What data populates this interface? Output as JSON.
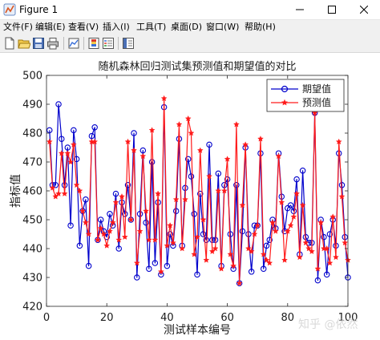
{
  "window": {
    "title": "Figure 1",
    "controls": [
      "minimize-icon",
      "maximize-icon",
      "close-icon"
    ]
  },
  "menubar": {
    "items": [
      {
        "id": "file",
        "label": "文件(F)"
      },
      {
        "id": "edit",
        "label": "编辑(E)"
      },
      {
        "id": "view",
        "label": "查看(V)"
      },
      {
        "id": "insert",
        "label": "插入(I)"
      },
      {
        "id": "tools",
        "label": "工具(T)"
      },
      {
        "id": "desktop",
        "label": "桌面(D)"
      },
      {
        "id": "window",
        "label": "窗口(W)"
      },
      {
        "id": "help",
        "label": "帮助(H)"
      }
    ]
  },
  "toolbar": {
    "buttons": [
      "new-figure-icon",
      "open-file-icon",
      "save-icon",
      "print-icon",
      "link-plot-icon",
      "insert-colorbar-icon",
      "insert-legend-icon",
      "property-editor-icon"
    ]
  },
  "watermark": "知乎 @依然",
  "chart_data": {
    "type": "line",
    "title": "随机森林回归测试集预测值和期望值的对比",
    "xlabel": "测试样本编号",
    "ylabel": "指标值",
    "xlim": [
      0,
      100
    ],
    "ylim": [
      420,
      500
    ],
    "xticks": [
      0,
      20,
      40,
      60,
      80,
      100
    ],
    "yticks": [
      420,
      430,
      440,
      450,
      460,
      470,
      480,
      490,
      500
    ],
    "grid": false,
    "legend_position": "top-right",
    "x": [
      1,
      2,
      3,
      4,
      5,
      6,
      7,
      8,
      9,
      10,
      11,
      12,
      13,
      14,
      15,
      16,
      17,
      18,
      19,
      20,
      21,
      22,
      23,
      24,
      25,
      26,
      27,
      28,
      29,
      30,
      31,
      32,
      33,
      34,
      35,
      36,
      37,
      38,
      39,
      40,
      41,
      42,
      43,
      44,
      45,
      46,
      47,
      48,
      49,
      50,
      51,
      52,
      53,
      54,
      55,
      56,
      57,
      58,
      59,
      60,
      61,
      62,
      63,
      64,
      65,
      66,
      67,
      68,
      69,
      70,
      71,
      72,
      73,
      74,
      75,
      76,
      77,
      78,
      79,
      80,
      81,
      82,
      83,
      84,
      85,
      86,
      87,
      88,
      89,
      90,
      91,
      92,
      93,
      94,
      95,
      96,
      97,
      98,
      99,
      100
    ],
    "series": [
      {
        "name": "期望值",
        "color": "#0000cc",
        "marker": "circle",
        "values": [
          481,
          462,
          462,
          490,
          478,
          462,
          475,
          448,
          481,
          471,
          441,
          453,
          457,
          434,
          479,
          482,
          443,
          450,
          446,
          444,
          452,
          448,
          459,
          440,
          456,
          452,
          462,
          450,
          480,
          430,
          452,
          474,
          449,
          433,
          470,
          435,
          456,
          431,
          489,
          434,
          445,
          441,
          453,
          478,
          441,
          461,
          471,
          465,
          452,
          431,
          459,
          445,
          443,
          476,
          443,
          443,
          466,
          434,
          462,
          464,
          445,
          433,
          462,
          428,
          446,
          475,
          445,
          432,
          448,
          448,
          473,
          433,
          441,
          443,
          450,
          447,
          473,
          458,
          446,
          454,
          455,
          453,
          464,
          438,
          467,
          444,
          442,
          442,
          487,
          429,
          450,
          444,
          431,
          445,
          450,
          441,
          473,
          462,
          444,
          430
        ]
      },
      {
        "name": "预测值",
        "color": "#ff1a1a",
        "marker": "star",
        "values": [
          477,
          461,
          458,
          459,
          473,
          459,
          473,
          470,
          476,
          462,
          460,
          453,
          449,
          445,
          477,
          477,
          443,
          447,
          445,
          441,
          446,
          449,
          456,
          443,
          458,
          444,
          477,
          450,
          474,
          435,
          446,
          472,
          453,
          443,
          481,
          443,
          459,
          432,
          492,
          441,
          448,
          442,
          457,
          483,
          440,
          457,
          485,
          480,
          438,
          444,
          474,
          450,
          436,
          465,
          439,
          440,
          460,
          433,
          460,
          471,
          438,
          434,
          483,
          428,
          455,
          476,
          440,
          439,
          445,
          448,
          478,
          438,
          436,
          435,
          449,
          446,
          472,
          456,
          436,
          446,
          448,
          451,
          459,
          437,
          455,
          442,
          440,
          439,
          487,
          433,
          449,
          440,
          440,
          435,
          451,
          437,
          477,
          458,
          442,
          436
        ]
      }
    ]
  }
}
